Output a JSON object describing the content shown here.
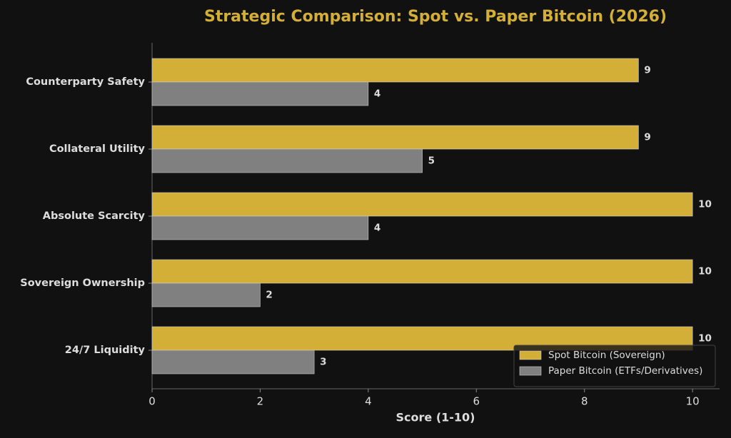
{
  "chart_data": {
    "type": "bar",
    "orientation": "horizontal",
    "title": "Strategic Comparison: Spot vs. Paper Bitcoin (2026)",
    "xlabel": "Score (1-10)",
    "categories": [
      "Counterparty Safety",
      "Collateral Utility",
      "Absolute Scarcity",
      "Sovereign Ownership",
      "24/7 Liquidity"
    ],
    "series": [
      {
        "name": "Spot Bitcoin (Sovereign)",
        "color": "#d4af37",
        "values": [
          9,
          9,
          10,
          10,
          10
        ]
      },
      {
        "name": "Paper Bitcoin (ETFs/Derivatives)",
        "color": "#808080",
        "values": [
          4,
          5,
          4,
          2,
          3
        ]
      }
    ],
    "xlim": [
      0,
      10.5
    ],
    "xticks": [
      0,
      2,
      4,
      6,
      8,
      10
    ],
    "legend": "lower right"
  }
}
